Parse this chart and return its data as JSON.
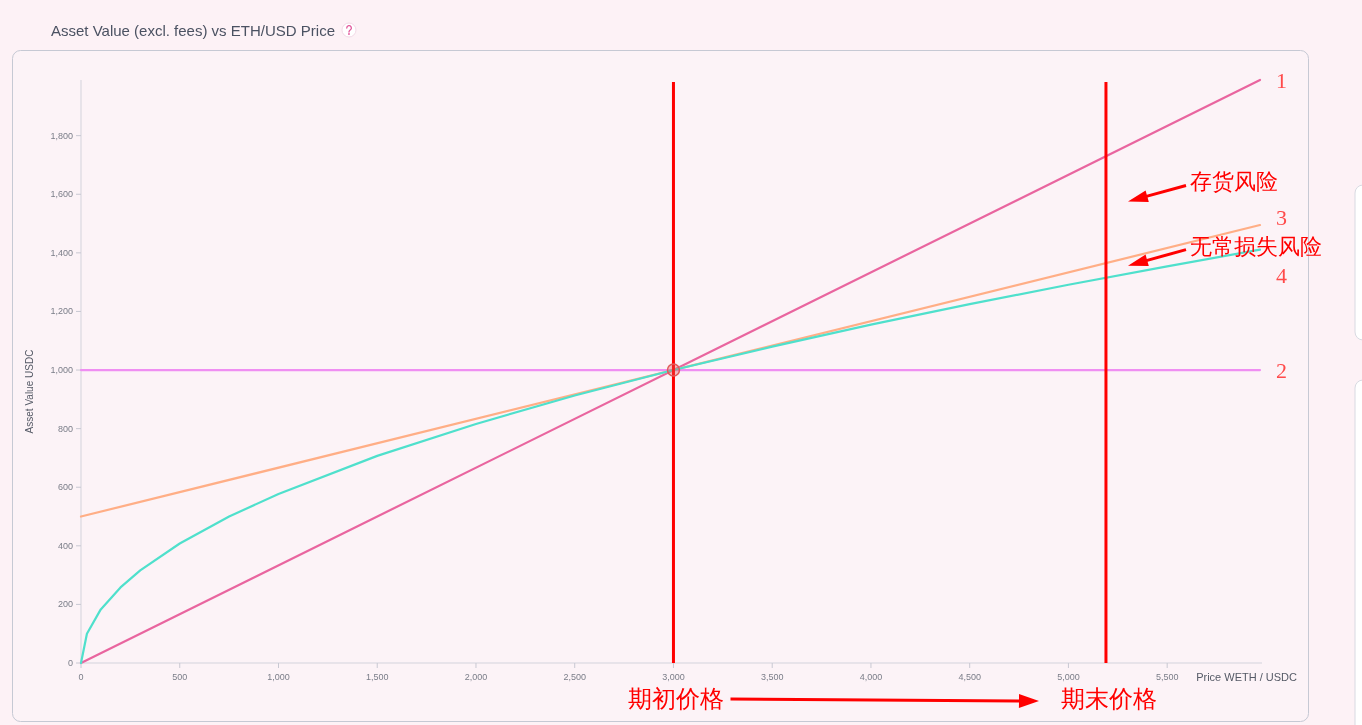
{
  "chart_data": {
    "type": "line",
    "title": "Asset Value (excl. fees) vs ETH/USD Price",
    "xlabel": "Price WETH / USDC",
    "ylabel": "Asset Value USDC",
    "xlim": [
      0,
      5970
    ],
    "ylim": [
      0,
      1990
    ],
    "xticks": [
      0,
      500,
      {
        "value": 1000,
        "label": "1,000"
      },
      {
        "value": 1500,
        "label": "1,500"
      },
      {
        "value": 2000,
        "label": "2,000"
      },
      {
        "value": 2500,
        "label": "2,500"
      },
      {
        "value": 3000,
        "label": "3,000"
      },
      {
        "value": 3500,
        "label": "3,500"
      },
      {
        "value": 4000,
        "label": "4,000"
      },
      {
        "value": 4500,
        "label": "4,500"
      },
      {
        "value": 5000,
        "label": "5,000"
      },
      {
        "value": 5500,
        "label": "5,500"
      }
    ],
    "yticks": [
      0,
      200,
      400,
      600,
      800,
      {
        "value": 1000,
        "label": "1,000"
      },
      {
        "value": 1200,
        "label": "1,200"
      },
      {
        "value": 1400,
        "label": "1,400"
      },
      {
        "value": 1600,
        "label": "1,600"
      },
      {
        "value": 1800,
        "label": "1,800"
      }
    ],
    "series": [
      {
        "name": "1",
        "color": "#e9659f",
        "x": [
          0,
          5970
        ],
        "values": [
          0,
          1990
        ]
      },
      {
        "name": "2",
        "color": "#ef8ef2",
        "x": [
          0,
          5970
        ],
        "values": [
          1000,
          1000
        ]
      },
      {
        "name": "3",
        "color": "#ffae86",
        "x": [
          0,
          5970
        ],
        "values": [
          500,
          1495
        ]
      },
      {
        "name": "4",
        "color": "#4fe0cc",
        "x": [
          0,
          30,
          100,
          200,
          300,
          500,
          750,
          1000,
          1500,
          2000,
          2500,
          3000,
          3500,
          4000,
          4500,
          5000,
          5500,
          5970
        ],
        "values": [
          0,
          100,
          183,
          258,
          316,
          408,
          500,
          577,
          707,
          816,
          913,
          1000,
          1080,
          1155,
          1225,
          1291,
          1354,
          1411
        ]
      },
      {
        "type": "scatter",
        "color": "#e05a5a",
        "x": [
          3000
        ],
        "values": [
          1000
        ]
      }
    ],
    "ref_lines": [
      {
        "axis": "x",
        "value": 3000,
        "label": "期初价格",
        "color": "#ff0000"
      },
      {
        "axis": "x",
        "value": 5190,
        "label": "期末价格",
        "color": "#ff0000"
      }
    ],
    "annotations": [
      "存货风险",
      "无常损失风险"
    ]
  }
}
